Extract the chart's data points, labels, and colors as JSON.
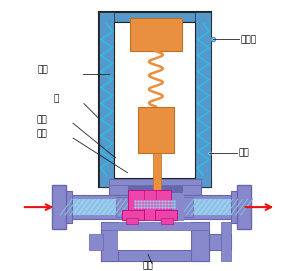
{
  "bg_color": "#ffffff",
  "blue_outer": "#5599cc",
  "blue_mid": "#77aadd",
  "blue_fill": "#99ccee",
  "blue_hatch": "#88bbdd",
  "dark_border": "#222222",
  "orange_color": "#e89040",
  "orange_dark": "#c07020",
  "magenta_color": "#ee44aa",
  "magenta_dark": "#bb1188",
  "purple_body": "#8888cc",
  "purple_dark": "#6666aa",
  "cyan_spring": "#33bbdd",
  "red_arrow": "#ee1111",
  "labels": {
    "xianquan": "线圈",
    "zhao": "罩",
    "zhujia": "主阀",
    "xiaokong": "小孔",
    "fagan": "阀杆",
    "dingtixin": "定鐵心",
    "daojia": "导阀"
  }
}
